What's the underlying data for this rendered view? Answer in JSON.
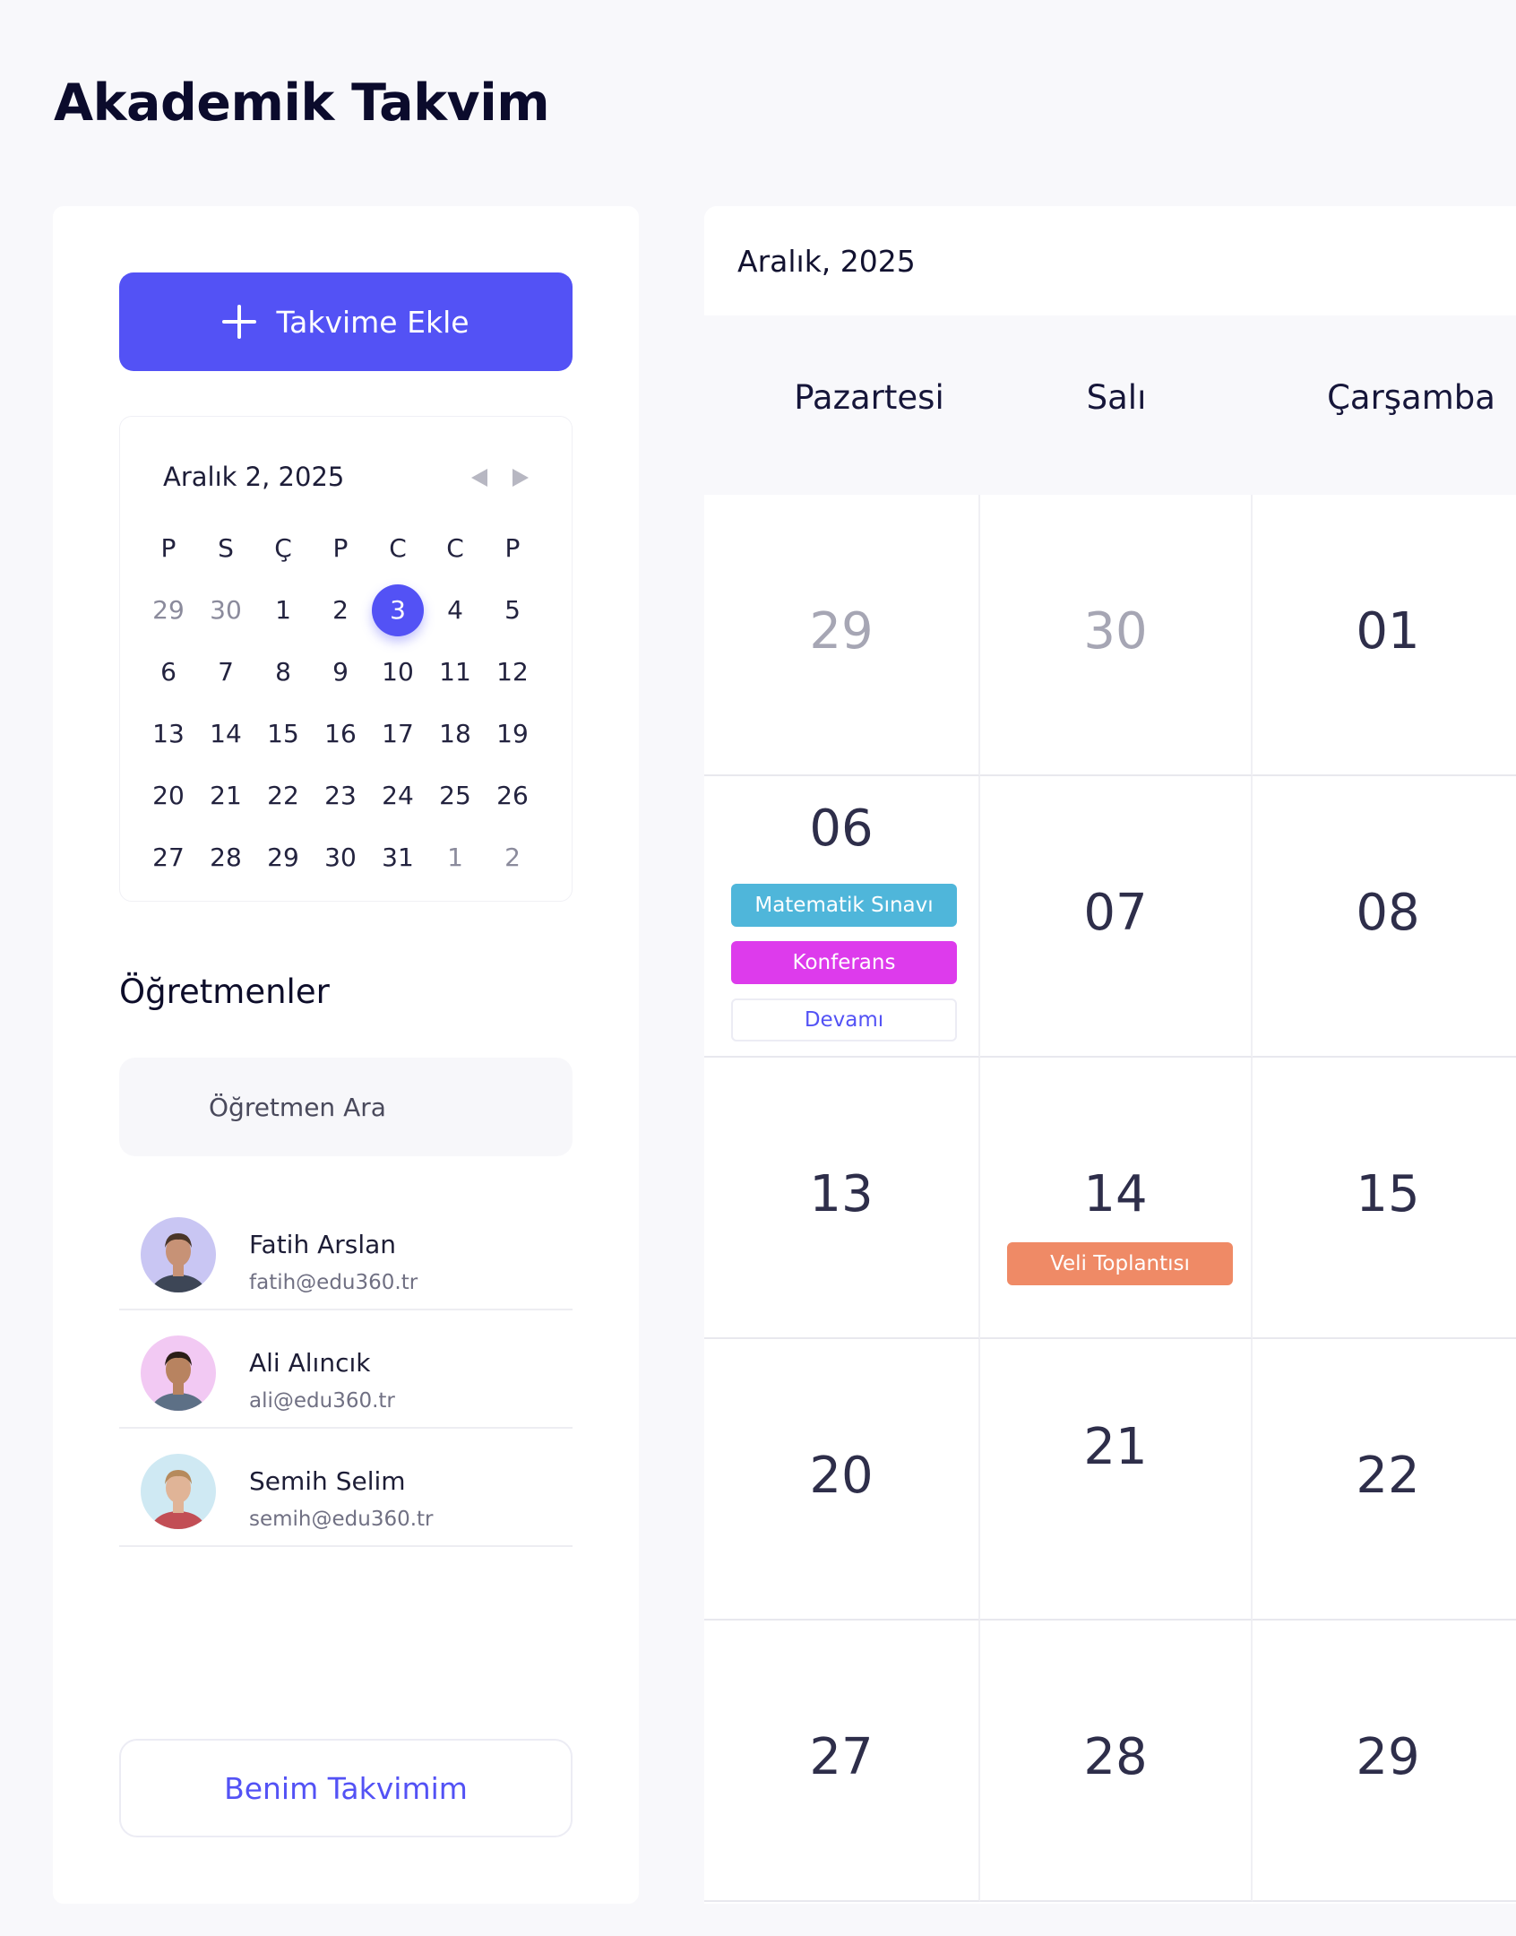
{
  "page": {
    "title": "Akademik Takvim"
  },
  "sidebar": {
    "add_button_label": "Takvime Ekle",
    "mini_calendar": {
      "title": "Aralık 2, 2025",
      "weekdays": [
        "P",
        "S",
        "Ç",
        "P",
        "C",
        "C",
        "P"
      ],
      "days": [
        {
          "d": "29",
          "muted": true
        },
        {
          "d": "30",
          "muted": true
        },
        {
          "d": "1"
        },
        {
          "d": "2"
        },
        {
          "d": "3",
          "selected": true
        },
        {
          "d": "4"
        },
        {
          "d": "5"
        },
        {
          "d": "6"
        },
        {
          "d": "7"
        },
        {
          "d": "8"
        },
        {
          "d": "9"
        },
        {
          "d": "10"
        },
        {
          "d": "11"
        },
        {
          "d": "12"
        },
        {
          "d": "13"
        },
        {
          "d": "14"
        },
        {
          "d": "15"
        },
        {
          "d": "16"
        },
        {
          "d": "17"
        },
        {
          "d": "18"
        },
        {
          "d": "19"
        },
        {
          "d": "20"
        },
        {
          "d": "21"
        },
        {
          "d": "22"
        },
        {
          "d": "23"
        },
        {
          "d": "24"
        },
        {
          "d": "25"
        },
        {
          "d": "26"
        },
        {
          "d": "27"
        },
        {
          "d": "28"
        },
        {
          "d": "29"
        },
        {
          "d": "30"
        },
        {
          "d": "31"
        },
        {
          "d": "1",
          "muted": true
        },
        {
          "d": "2",
          "muted": true
        }
      ]
    },
    "teachers_title": "Öğretmenler",
    "search_placeholder": "Öğretmen Ara",
    "teachers": [
      {
        "name": "Fatih Arslan",
        "email": "fatih@edu360.tr",
        "avatar_bg": "#c9c6f3",
        "shirt": "#3d4656",
        "skin": "#c79276",
        "hair": "#4a3628"
      },
      {
        "name": "Ali Alıncık",
        "email": "ali@edu360.tr",
        "avatar_bg": "#f2c9f3",
        "shirt": "#5d7086",
        "skin": "#b88360",
        "hair": "#2b1e17"
      },
      {
        "name": "Semih Selim",
        "email": "semih@edu360.tr",
        "avatar_bg": "#cfe9f3",
        "shirt": "#c24e55",
        "skin": "#e0b497",
        "hair": "#b68a5c"
      }
    ],
    "my_calendar_label": "Benim Takvimim"
  },
  "calendar": {
    "month_label": "Aralık, 2025",
    "weekdays": [
      "Pazartesi",
      "Salı",
      "Çarşamba"
    ],
    "rows": [
      [
        {
          "d": "29",
          "muted": true
        },
        {
          "d": "30",
          "muted": true
        },
        {
          "d": "01"
        }
      ],
      [
        {
          "d": "06",
          "events": [
            {
              "label": "Matematik Sınavı",
              "color": "#4fb6da"
            },
            {
              "label": "Konferans",
              "color": "#dd3bec"
            },
            {
              "label": "Devamı",
              "style": "outline",
              "color": "#5352f5"
            }
          ]
        },
        {
          "d": "07"
        },
        {
          "d": "08"
        }
      ],
      [
        {
          "d": "13"
        },
        {
          "d": "14",
          "events": [
            {
              "label": "Veli Toplantısı",
              "color": "#ef8a66"
            }
          ]
        },
        {
          "d": "15"
        }
      ],
      [
        {
          "d": "20"
        },
        {
          "d": "21",
          "raised": true
        },
        {
          "d": "22"
        }
      ],
      [
        {
          "d": "27"
        },
        {
          "d": "28"
        },
        {
          "d": "29"
        }
      ]
    ]
  },
  "colors": {
    "accent": "#5352f5",
    "background": "#f8f8fb"
  }
}
